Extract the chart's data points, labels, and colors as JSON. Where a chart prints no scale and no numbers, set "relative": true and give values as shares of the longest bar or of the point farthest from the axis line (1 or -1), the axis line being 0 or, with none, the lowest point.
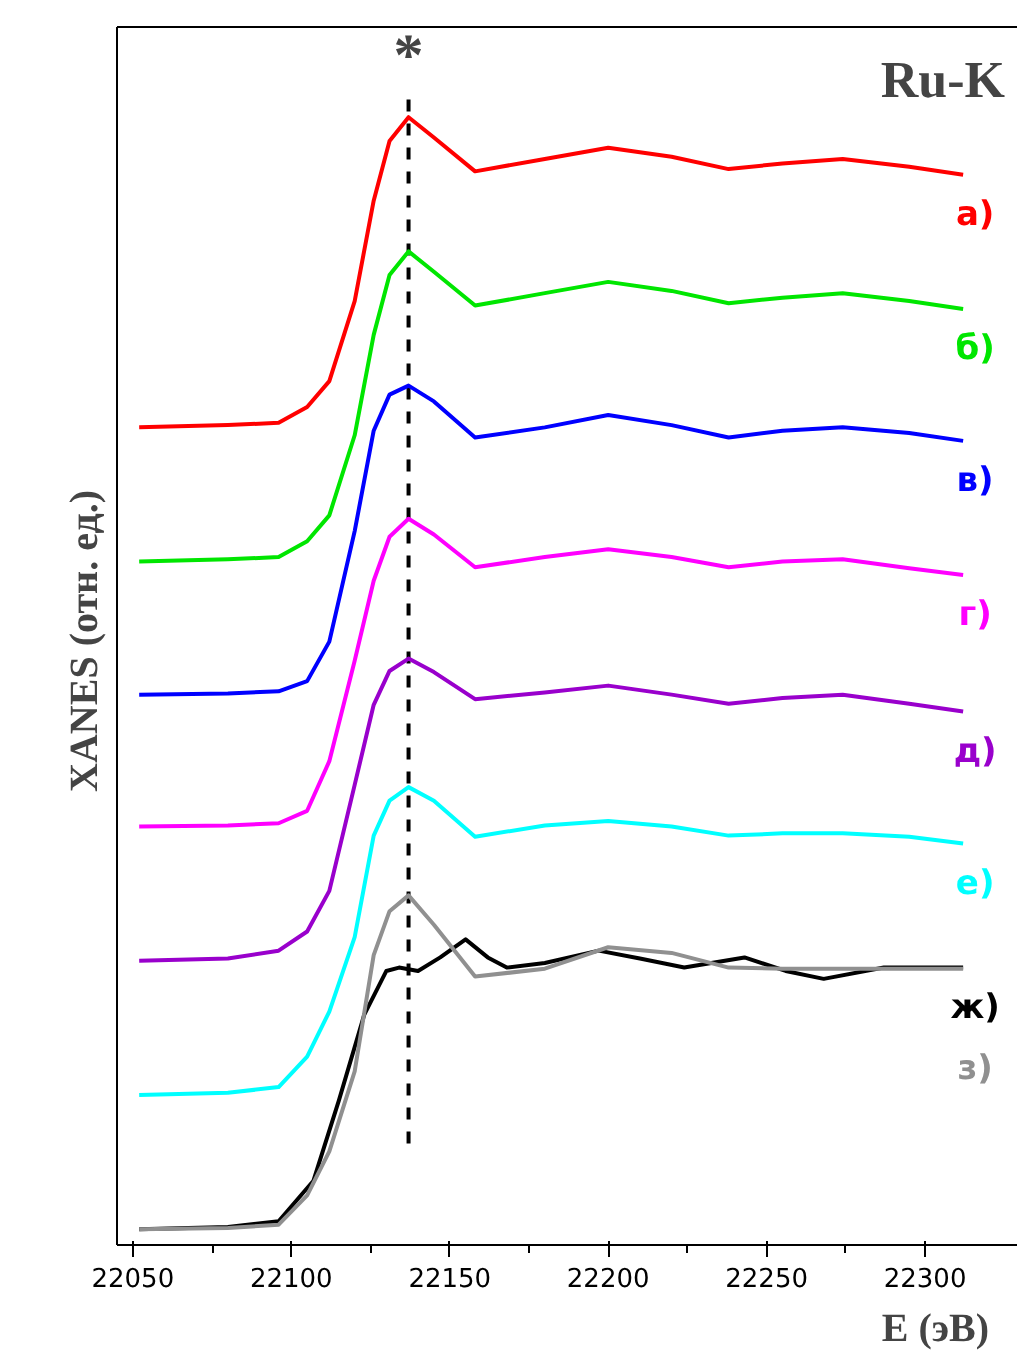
{
  "chart_data": {
    "type": "line",
    "relative": true,
    "xlabel": "E (эВ)",
    "ylabel": "XANES  (отн. ед.)",
    "annotations": [
      "Ru-K"
    ],
    "x": [
      22052,
      22080,
      22096,
      22105,
      22112,
      22120,
      22126,
      22131,
      22137,
      22145,
      22158,
      22180,
      22200,
      22220,
      22238,
      22255,
      22274,
      22295,
      22312
    ],
    "xlim": [
      22045,
      22329
    ],
    "xticks": [
      22050,
      22100,
      22150,
      22200,
      22250,
      22300
    ],
    "grid": false,
    "marker": "none",
    "line_style": "solid",
    "ref_lines": [
      {
        "axis": "x",
        "value": 22137,
        "label": "*",
        "color": "#000000",
        "line_style": "dashed"
      }
    ],
    "series": [
      {
        "name": "а)",
        "color": "#ff0000",
        "values": [
          0.725,
          0.727,
          0.729,
          0.743,
          0.766,
          0.837,
          0.926,
          0.979,
          1.0,
          0.982,
          0.952,
          0.963,
          0.973,
          0.965,
          0.954,
          0.959,
          0.963,
          0.956,
          0.949
        ]
      },
      {
        "name": "б)",
        "color": "#00e600",
        "values": [
          0.606,
          0.608,
          0.61,
          0.624,
          0.647,
          0.718,
          0.807,
          0.86,
          0.881,
          0.863,
          0.833,
          0.844,
          0.854,
          0.846,
          0.835,
          0.84,
          0.844,
          0.837,
          0.83
        ]
      },
      {
        "name": "в)",
        "color": "#0000ff",
        "values": [
          0.488,
          0.489,
          0.491,
          0.5,
          0.535,
          0.633,
          0.722,
          0.754,
          0.762,
          0.748,
          0.716,
          0.725,
          0.736,
          0.727,
          0.716,
          0.722,
          0.725,
          0.72,
          0.713
        ]
      },
      {
        "name": "г)",
        "color": "#ff00ff",
        "values": [
          0.371,
          0.372,
          0.374,
          0.385,
          0.429,
          0.518,
          0.589,
          0.628,
          0.644,
          0.63,
          0.601,
          0.61,
          0.617,
          0.61,
          0.601,
          0.606,
          0.608,
          0.6,
          0.594
        ]
      },
      {
        "name": "д)",
        "color": "#9900cc",
        "values": [
          0.252,
          0.254,
          0.261,
          0.278,
          0.314,
          0.408,
          0.479,
          0.509,
          0.52,
          0.508,
          0.484,
          0.49,
          0.496,
          0.488,
          0.48,
          0.485,
          0.488,
          0.48,
          0.473
        ]
      },
      {
        "name": "е)",
        "color": "#00ffff",
        "values": [
          0.133,
          0.135,
          0.14,
          0.167,
          0.207,
          0.273,
          0.363,
          0.394,
          0.406,
          0.394,
          0.362,
          0.372,
          0.376,
          0.371,
          0.363,
          0.365,
          0.365,
          0.362,
          0.356
        ]
      },
      {
        "name": "ж)",
        "color": "#000000",
        "x": [
          22052,
          22080,
          22096,
          22107,
          22115,
          22123,
          22130,
          22134,
          22140,
          22147,
          22155,
          22162,
          22168,
          22180,
          22197,
          22210,
          22224,
          22243,
          22256,
          22268,
          22287,
          22312
        ],
        "values": [
          0.014,
          0.016,
          0.021,
          0.057,
          0.128,
          0.204,
          0.243,
          0.246,
          0.243,
          0.255,
          0.271,
          0.255,
          0.246,
          0.25,
          0.261,
          0.254,
          0.246,
          0.255,
          0.243,
          0.236,
          0.246,
          0.246
        ]
      },
      {
        "name": "з)",
        "color": "#909090",
        "values": [
          0.014,
          0.015,
          0.018,
          0.044,
          0.083,
          0.154,
          0.257,
          0.296,
          0.31,
          0.284,
          0.238,
          0.245,
          0.264,
          0.259,
          0.246,
          0.245,
          0.245,
          0.245,
          0.245
        ]
      }
    ]
  }
}
